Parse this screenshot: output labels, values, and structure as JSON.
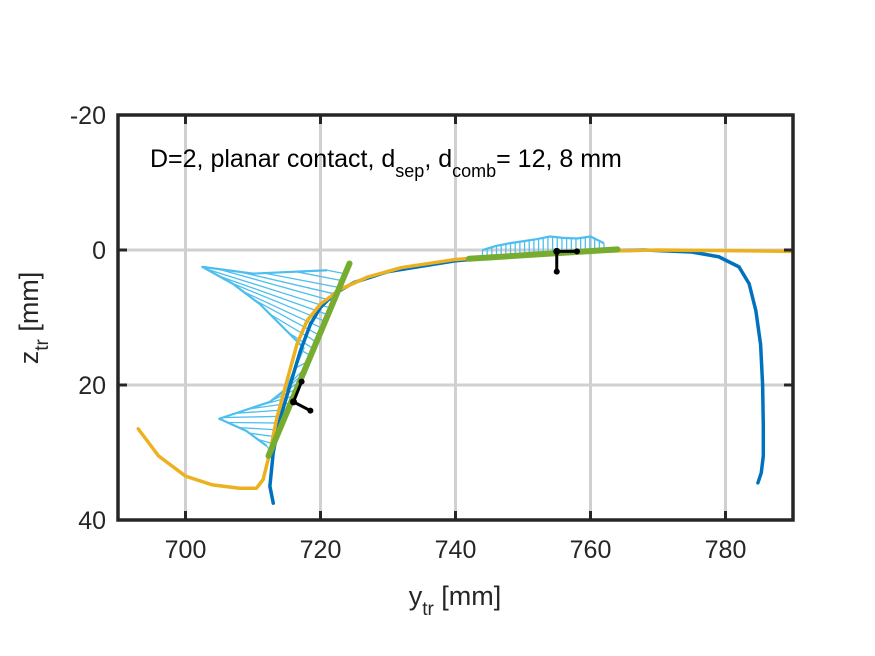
{
  "chart_data": {
    "type": "line",
    "title": "",
    "annotation": {
      "prefix": "D=2, planar contact, d",
      "sub1": "sep",
      "mid": ", d",
      "sub2": "comb",
      "suffix": "= 12, 8 mm"
    },
    "xlabel": {
      "main": "y",
      "sub": "tr",
      "unit": " [mm]"
    },
    "ylabel": {
      "main": "z",
      "sub": "tr",
      "unit": " [mm]"
    },
    "xlim": [
      690,
      790
    ],
    "ylim": [
      -20,
      40
    ],
    "y_reversed": true,
    "grid": true,
    "xticks": [
      700,
      720,
      740,
      760,
      780
    ],
    "yticks": [
      -20,
      0,
      20,
      40
    ],
    "xtick_labels": [
      "700",
      "720",
      "740",
      "760",
      "780"
    ],
    "ytick_labels": [
      "-20",
      "0",
      "20",
      "40"
    ],
    "colors": {
      "profile_blue": "#0072BD",
      "profile_orange": "#EDB120",
      "fit_green": "#77AC30",
      "distribution_cyan": "#4DBEEE",
      "frame_black": "#000000",
      "grid": "#d0d0d0",
      "axes": "#262626"
    },
    "series": [
      {
        "color": "#0072BD",
        "x": [
          713.0,
          712.5,
          713.0,
          714.0,
          715.5,
          717.0,
          718.5,
          720.0,
          722.0,
          725.0,
          730.0,
          740.0,
          750.0,
          760.0,
          768.0,
          775.0,
          779.0,
          782.0,
          783.5,
          784.5,
          785.2,
          785.5,
          785.6,
          785.6,
          785.3,
          784.8
        ],
        "y": [
          37.5,
          35.0,
          30.0,
          25.0,
          20.0,
          15.0,
          11.0,
          8.5,
          6.5,
          4.8,
          3.2,
          1.6,
          0.8,
          0.2,
          0.0,
          0.3,
          1.0,
          2.5,
          5.0,
          9.0,
          14.0,
          20.0,
          26.0,
          30.5,
          33.0,
          34.5
        ]
      },
      {
        "color": "#EDB120",
        "x": [
          693.0,
          696.0,
          700.0,
          704.0,
          708.0,
          710.5,
          711.5,
          712.5,
          713.5,
          715.0,
          716.5,
          718.0,
          720.0,
          723.0,
          727.0,
          732.0,
          740.0,
          750.0,
          760.0,
          770.0,
          780.0,
          790.0
        ],
        "y": [
          26.5,
          30.5,
          33.5,
          34.8,
          35.3,
          35.3,
          34.0,
          30.0,
          25.0,
          19.5,
          14.0,
          10.5,
          8.0,
          5.8,
          4.0,
          2.6,
          1.4,
          0.7,
          0.2,
          0.0,
          0.1,
          0.2
        ]
      },
      {
        "color": "#77AC30",
        "x": [
          712.3,
          724.3
        ],
        "y": [
          30.5,
          2.0
        ]
      },
      {
        "color": "#77AC30",
        "x": [
          742.0,
          764.0
        ],
        "y": [
          1.3,
          -0.1
        ]
      }
    ],
    "contact_distributions": [
      {
        "color": "#4DBEEE",
        "base_x": [
          712.5,
          713.5,
          714.5,
          715.5,
          716.5,
          717.5,
          718.5,
          719.5,
          720.5,
          721.5,
          722.5,
          723.5
        ],
        "base_y": [
          29.7,
          27.3,
          24.9,
          22.6,
          20.2,
          17.8,
          15.4,
          13.0,
          10.6,
          8.3,
          5.9,
          3.5
        ],
        "tip_x": [
          712.0,
          709.0,
          705.0,
          709.5,
          712.5,
          715.0,
          717.5,
          711.0,
          707.0,
          702.5,
          710.0,
          721.0
        ],
        "tip_y": [
          29.0,
          26.8,
          25.0,
          23.5,
          22.5,
          20.5,
          14.5,
          8.0,
          5.0,
          2.5,
          3.5,
          3.0
        ]
      },
      {
        "color": "#4DBEEE",
        "base_x": [
          744.0,
          746.0,
          748.0,
          750.0,
          752.0,
          754.0,
          756.0,
          758.0,
          760.0,
          762.0
        ],
        "base_y": [
          1.2,
          1.05,
          0.9,
          0.75,
          0.6,
          0.5,
          0.4,
          0.3,
          0.2,
          0.1
        ],
        "tip_x": [
          744.0,
          746.0,
          748.0,
          750.0,
          752.0,
          754.0,
          756.0,
          758.0,
          760.0,
          762.0
        ],
        "tip_y": [
          0.0,
          -0.6,
          -1.0,
          -1.3,
          -1.6,
          -2.0,
          -1.8,
          -1.7,
          -2.0,
          -1.0
        ]
      }
    ],
    "frames": [
      {
        "origin": [
          716.0,
          22.5
        ],
        "axis1": [
          718.5,
          23.8
        ],
        "axis2": [
          717.2,
          19.5
        ]
      },
      {
        "origin": [
          755.0,
          0.2
        ],
        "axis1": [
          758.0,
          0.2
        ],
        "axis2": [
          755.0,
          3.2
        ]
      }
    ]
  }
}
